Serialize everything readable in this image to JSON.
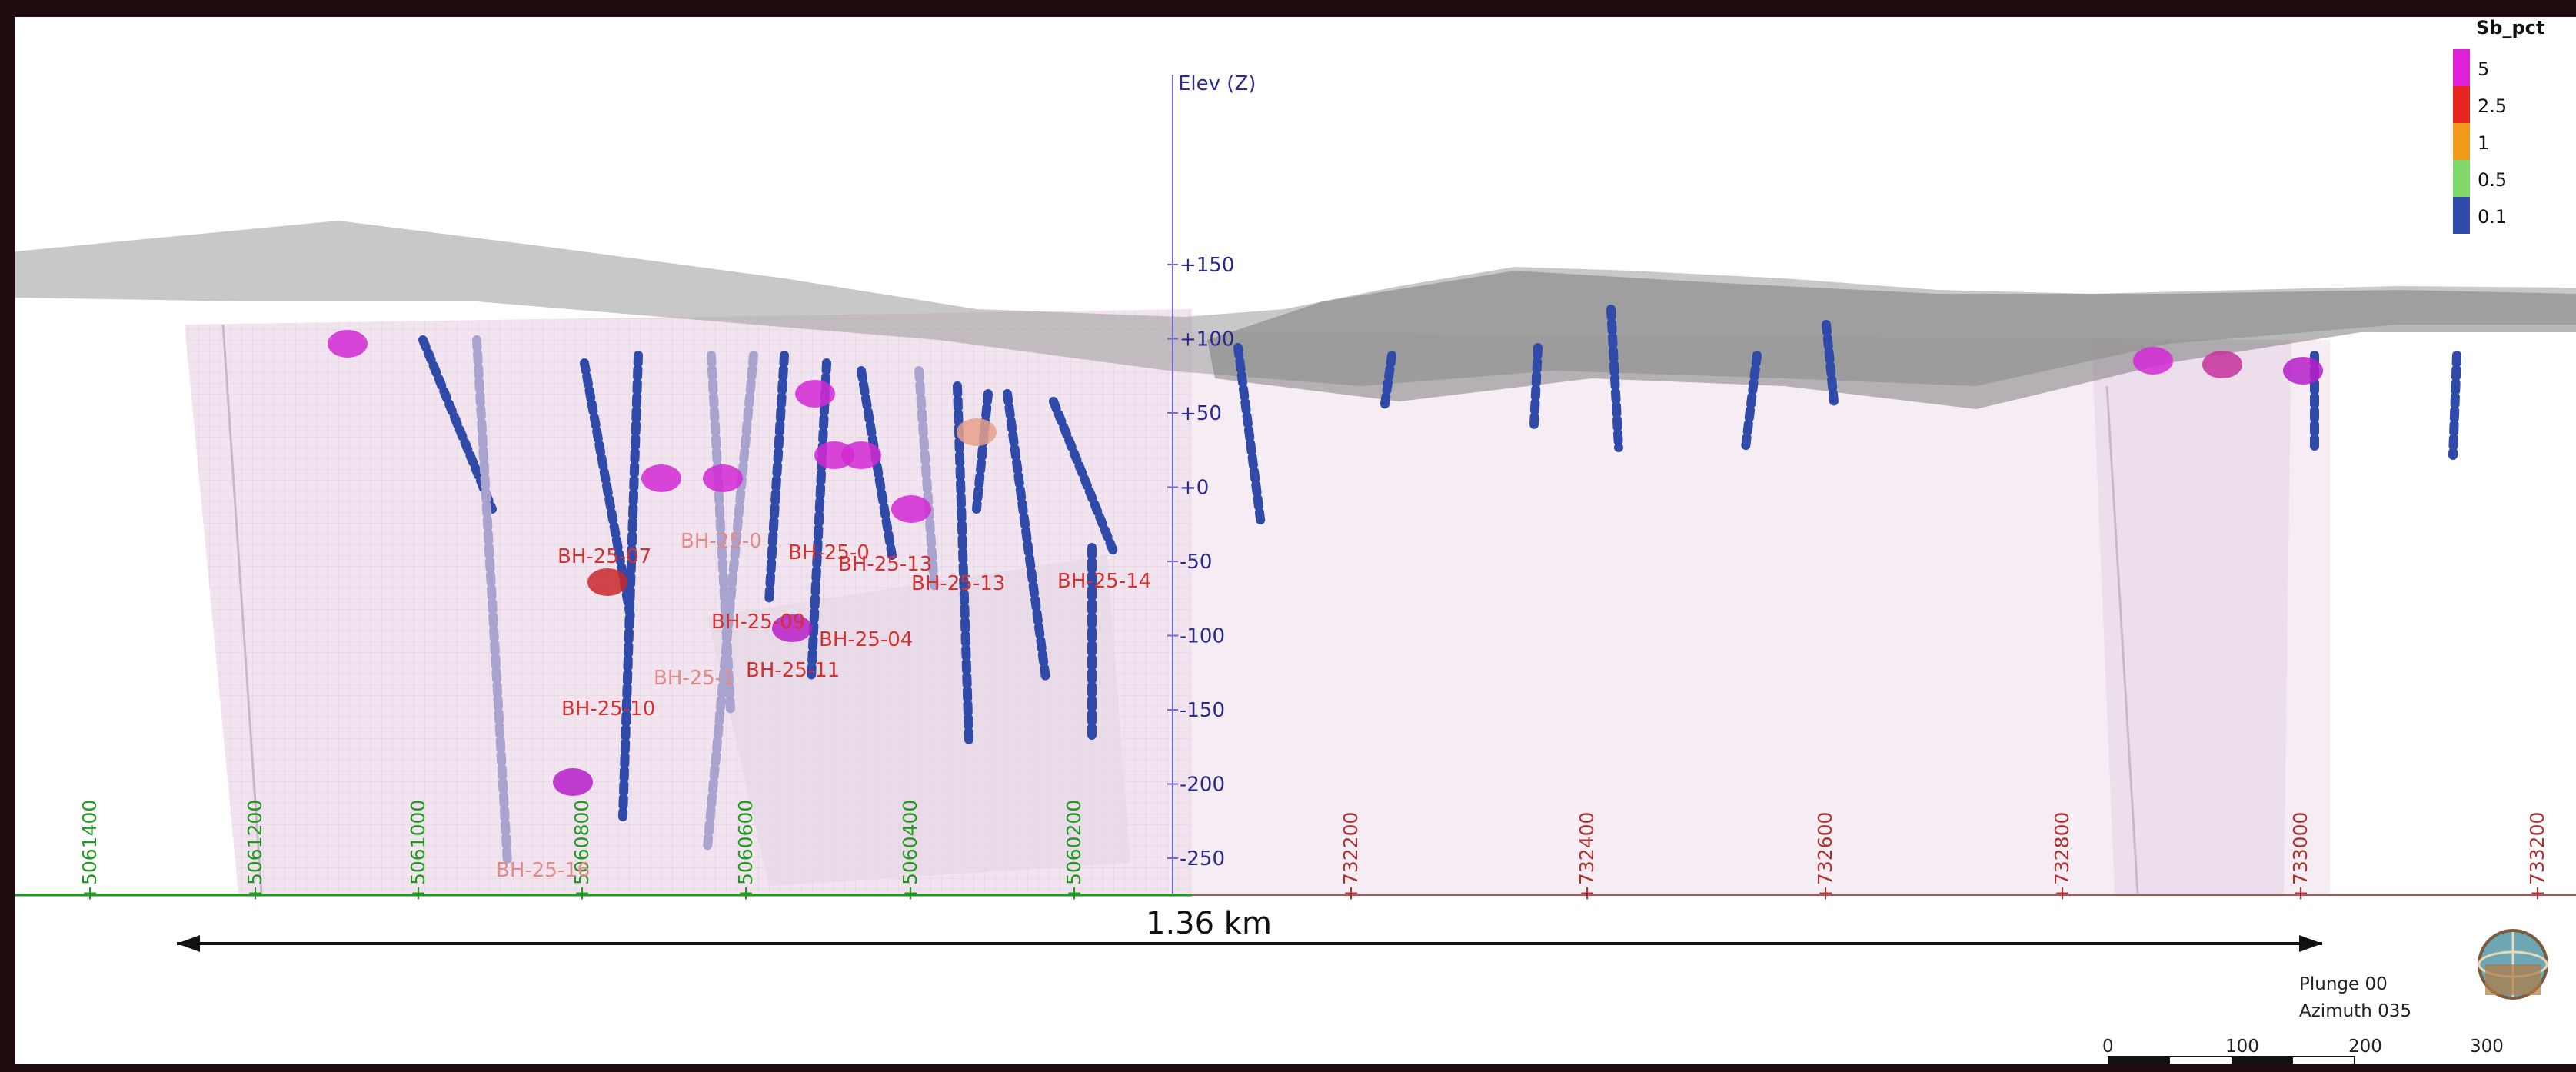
{
  "elevation_axis": {
    "title": "Elev (Z)",
    "ticks": [
      "+150",
      "+100",
      "+50",
      "+0",
      "-50",
      "-100",
      "-150",
      "-200",
      "-250"
    ]
  },
  "legend": {
    "title": "Sb_pct",
    "items": [
      {
        "label": "5",
        "color": "#e020d8"
      },
      {
        "label": "2.5",
        "color": "#e8251e"
      },
      {
        "label": "1",
        "color": "#f29a1c"
      },
      {
        "label": "0.5",
        "color": "#7fd86a"
      },
      {
        "label": "0.1",
        "color": "#2f4aa8"
      }
    ]
  },
  "northing_labels": [
    "+5061400",
    "+5061200",
    "+5061000",
    "+5060800",
    "+5060600",
    "+5060400",
    "+5060200"
  ],
  "easting_labels": [
    "+732200",
    "+732400",
    "+732600",
    "+732800",
    "+733000",
    "+733200"
  ],
  "hole_labels": [
    {
      "text": "BH-25-07"
    },
    {
      "text": "BH-25-0"
    },
    {
      "text": "BH-25-0"
    },
    {
      "text": "BH-25-13"
    },
    {
      "text": "BH-25-13"
    },
    {
      "text": "BH-25-14"
    },
    {
      "text": "BH-25-09"
    },
    {
      "text": "BH-25-04"
    },
    {
      "text": "BH-25-11"
    },
    {
      "text": "BH-25-1"
    },
    {
      "text": "BH-25-10"
    },
    {
      "text": "BH-25-16"
    }
  ],
  "scale_bar_label": "1.36 km",
  "orientation": {
    "plunge": "Plunge 00",
    "azimuth": "Azimuth 035"
  },
  "scale_ticks": [
    "0",
    "100",
    "200",
    "300"
  ],
  "colors": {
    "viewport_bg": "#ffffff",
    "frame_bg": "#1f0b0d",
    "topo_surface": "#8e8e8e",
    "block_fill": "#e9d6e6",
    "elev_axis": "#6a6ad0",
    "grid_green": "#1f9a1f",
    "grid_red": "#b03030"
  }
}
